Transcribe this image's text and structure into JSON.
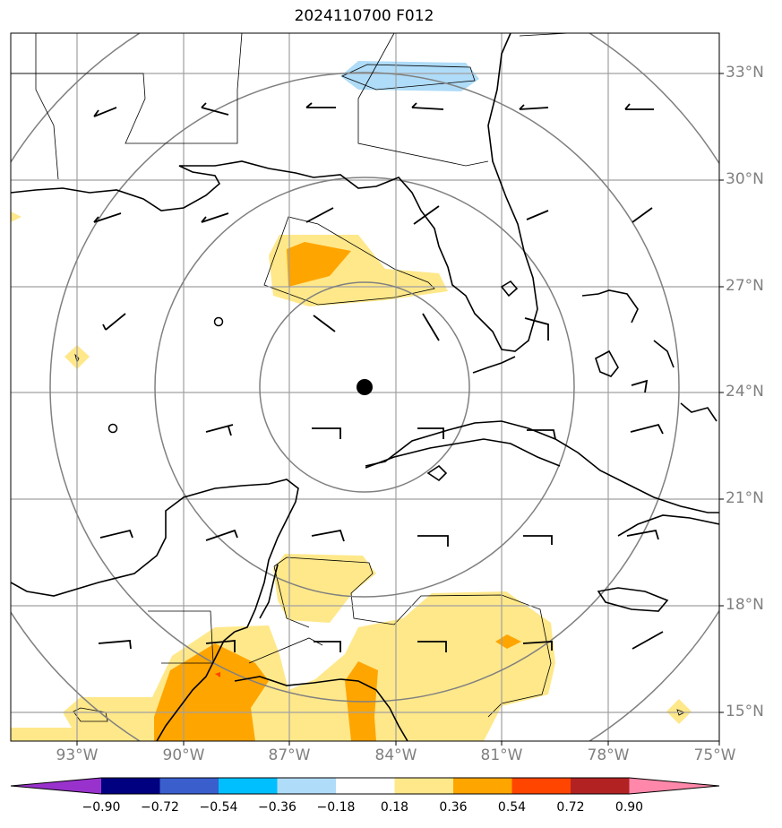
{
  "title": "2024110700 F012",
  "map": {
    "projection": "lat-lon",
    "lon_range": [
      -95,
      -75
    ],
    "lat_range": [
      14.2,
      34.2
    ],
    "storm_center": {
      "lon": -84.2,
      "lat": 24.2
    },
    "range_ring_radii_deg": [
      3,
      6,
      9,
      12
    ],
    "grid": true
  },
  "lat_labels": [
    "33°N",
    "30°N",
    "27°N",
    "24°N",
    "21°N",
    "18°N",
    "15°N"
  ],
  "lon_labels": [
    "93°W",
    "90°W",
    "87°W",
    "84°W",
    "81°W",
    "78°W",
    "75°W"
  ],
  "colorbar": {
    "ticks": [
      "−0.90",
      "−0.72",
      "−0.54",
      "−0.36",
      "−0.18",
      "0.18",
      "0.36",
      "0.54",
      "0.72",
      "0.90"
    ],
    "colors": [
      "#9932cc",
      "#000080",
      "#3a5fcd",
      "#00bfff",
      "#afdcf8",
      "#ffffff",
      "#ffe88a",
      "#ffa500",
      "#ff4500",
      "#b22222",
      "#ff88aa"
    ]
  },
  "colors": {
    "grid": "#a0a0a0",
    "rings": "#808080",
    "coast": "#000000",
    "positive_light": "#ffe88a",
    "positive_mid": "#ffa500",
    "positive_high": "#ff4500",
    "negative_light": "#afdcf8"
  }
}
